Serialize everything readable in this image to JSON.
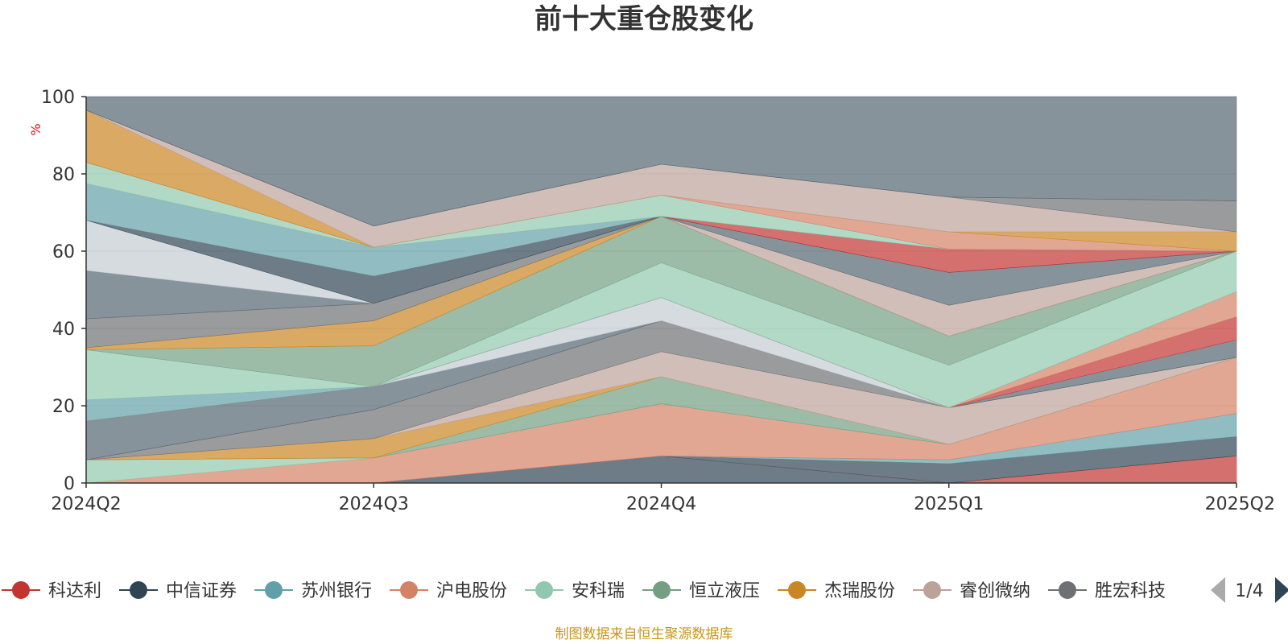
{
  "chart_data": {
    "type": "area",
    "title": "前十大重仓股变化",
    "ylabel": "%",
    "ylim": [
      0,
      100
    ],
    "yticks": [
      0,
      20,
      40,
      60,
      80,
      100
    ],
    "categories": [
      "2024Q2",
      "2024Q3",
      "2024Q4",
      "2025Q1",
      "2025Q2"
    ],
    "grid": true,
    "legend_placement": "bottom",
    "legend_page": "1/4",
    "series": [
      {
        "name": "科达利",
        "color": "#c23531",
        "lower": [
          0,
          0,
          7,
          0,
          0
        ],
        "upper": [
          0,
          0,
          7,
          0,
          7
        ]
      },
      {
        "name": "中信证券",
        "color": "#2f4554",
        "lower": [
          0,
          0,
          0,
          0,
          7
        ],
        "upper": [
          0,
          0,
          7,
          5,
          12
        ]
      },
      {
        "name": "苏州银行",
        "color": "#61a0a8",
        "lower": [
          0,
          0,
          7,
          5,
          12
        ],
        "upper": [
          0,
          0,
          7,
          6,
          18
        ]
      },
      {
        "name": "沪电股份",
        "color": "#d48265",
        "lower": [
          0,
          0,
          7,
          6,
          18
        ],
        "upper": [
          0,
          6.5,
          20.5,
          10,
          32.5
        ]
      },
      {
        "name": "安科瑞",
        "color": "#91c7ae",
        "lower": [
          0,
          6.5,
          20.5,
          10,
          32.5
        ],
        "upper": [
          6,
          6.5,
          20.5,
          10,
          32.5
        ]
      },
      {
        "name": "恒立液压",
        "color": "#749f83",
        "lower": [
          6,
          6.5,
          20.5,
          10,
          32.5
        ],
        "upper": [
          6,
          6.5,
          27.5,
          10,
          32.5
        ]
      },
      {
        "name": "杰瑞股份",
        "color": "#ca8622",
        "lower": [
          6,
          6.5,
          27.5,
          10,
          32.5
        ],
        "upper": [
          6,
          11.5,
          27.5,
          10,
          32.5
        ]
      },
      {
        "name": "睿创微纳",
        "color": "#bda29a",
        "lower": [
          6,
          11.5,
          27.5,
          10,
          32.5
        ],
        "upper": [
          6,
          11.5,
          34,
          19.5,
          32.5
        ]
      },
      {
        "name": "胜宏科技",
        "color": "#6e7074",
        "lower": [
          6,
          11.5,
          34,
          19.5,
          32.5
        ],
        "upper": [
          6,
          19,
          42,
          19.5,
          32.5
        ]
      },
      {
        "name": "",
        "color": "#546570",
        "lower": [
          6,
          19,
          42,
          19.5,
          32.5
        ],
        "upper": [
          16,
          25,
          42,
          19.5,
          37
        ]
      },
      {
        "name": "",
        "color": "#c4ccd3",
        "lower": [
          16,
          25,
          42,
          19.5,
          37
        ],
        "upper": [
          16,
          25,
          48,
          19.5,
          37
        ]
      },
      {
        "name": "",
        "color": "#c23531",
        "lower": [
          16,
          25,
          48,
          19.5,
          37
        ],
        "upper": [
          16,
          25,
          48,
          19.5,
          43
        ]
      },
      {
        "name": "",
        "color": "#d48265",
        "lower": [
          16,
          25,
          48,
          19.5,
          43
        ],
        "upper": [
          16,
          25,
          48,
          19.5,
          49.5
        ]
      },
      {
        "name": "",
        "color": "#61a0a8",
        "lower": [
          16,
          25,
          48,
          19.5,
          49.5
        ],
        "upper": [
          21.5,
          25,
          48,
          19.5,
          49.5
        ]
      },
      {
        "name": "",
        "color": "#91c7ae",
        "lower": [
          21.5,
          25,
          48,
          19.5,
          49.5
        ],
        "upper": [
          34.5,
          25,
          57,
          30.5,
          60
        ]
      },
      {
        "name": "",
        "color": "#749f83",
        "lower": [
          34.5,
          25,
          57,
          30.5,
          60
        ],
        "upper": [
          34.5,
          35.5,
          69,
          38,
          60
        ]
      },
      {
        "name": "",
        "color": "#ca8622",
        "lower": [
          34.5,
          35.5,
          69,
          38,
          60
        ],
        "upper": [
          35,
          42,
          69,
          38,
          60
        ]
      },
      {
        "name": "",
        "color": "#6e7074",
        "lower": [
          35,
          42,
          69,
          38,
          60
        ],
        "upper": [
          42.5,
          46.5,
          69,
          38,
          60
        ]
      },
      {
        "name": "",
        "color": "#bda29a",
        "lower": [
          42.5,
          46.5,
          69,
          38,
          60
        ],
        "upper": [
          42.5,
          46.5,
          69,
          46,
          60
        ]
      },
      {
        "name": "",
        "color": "#546570",
        "lower": [
          42.5,
          46.5,
          69,
          46,
          60
        ],
        "upper": [
          55,
          46.5,
          69,
          54.5,
          60
        ]
      },
      {
        "name": "",
        "color": "#c4ccd3",
        "lower": [
          55,
          46.5,
          69,
          54.5,
          60
        ],
        "upper": [
          68,
          46.5,
          69,
          54.5,
          60
        ]
      },
      {
        "name": "",
        "color": "#2f4554",
        "lower": [
          68,
          46.5,
          69,
          54.5,
          60
        ],
        "upper": [
          68,
          53.5,
          69,
          54.5,
          60
        ]
      },
      {
        "name": "",
        "color": "#c23531",
        "lower": [
          68,
          53.5,
          69,
          54.5,
          60
        ],
        "upper": [
          68,
          53.5,
          69,
          60.5,
          60
        ]
      },
      {
        "name": "",
        "color": "#61a0a8",
        "lower": [
          68,
          53.5,
          69,
          60.5,
          60
        ],
        "upper": [
          77.5,
          61,
          69,
          60.5,
          60
        ]
      },
      {
        "name": "",
        "color": "#91c7ae",
        "lower": [
          77.5,
          61,
          69,
          60.5,
          60
        ],
        "upper": [
          83,
          61,
          74.5,
          60.5,
          60
        ]
      },
      {
        "name": "",
        "color": "#d48265",
        "lower": [
          83,
          61,
          74.5,
          60.5,
          60
        ],
        "upper": [
          83,
          61,
          74.5,
          65,
          60
        ]
      },
      {
        "name": "",
        "color": "#ca8622",
        "lower": [
          83,
          61,
          74.5,
          65,
          60
        ],
        "upper": [
          96.5,
          61,
          74.5,
          65,
          65
        ]
      },
      {
        "name": "",
        "color": "#bda29a",
        "lower": [
          96.5,
          61,
          74.5,
          65,
          65
        ],
        "upper": [
          96.5,
          66.5,
          82.5,
          74,
          65
        ]
      },
      {
        "name": "",
        "color": "#6e7074",
        "lower": [
          96.5,
          66.5,
          82.5,
          74,
          65
        ],
        "upper": [
          96.5,
          66.5,
          82.5,
          74,
          73
        ]
      },
      {
        "name": "",
        "color": "#546570",
        "lower": [
          96.5,
          66.5,
          82.5,
          74,
          73
        ],
        "upper": [
          100,
          100,
          100,
          100,
          100
        ]
      }
    ]
  },
  "source_note": "制图数据来自恒生聚源数据库"
}
